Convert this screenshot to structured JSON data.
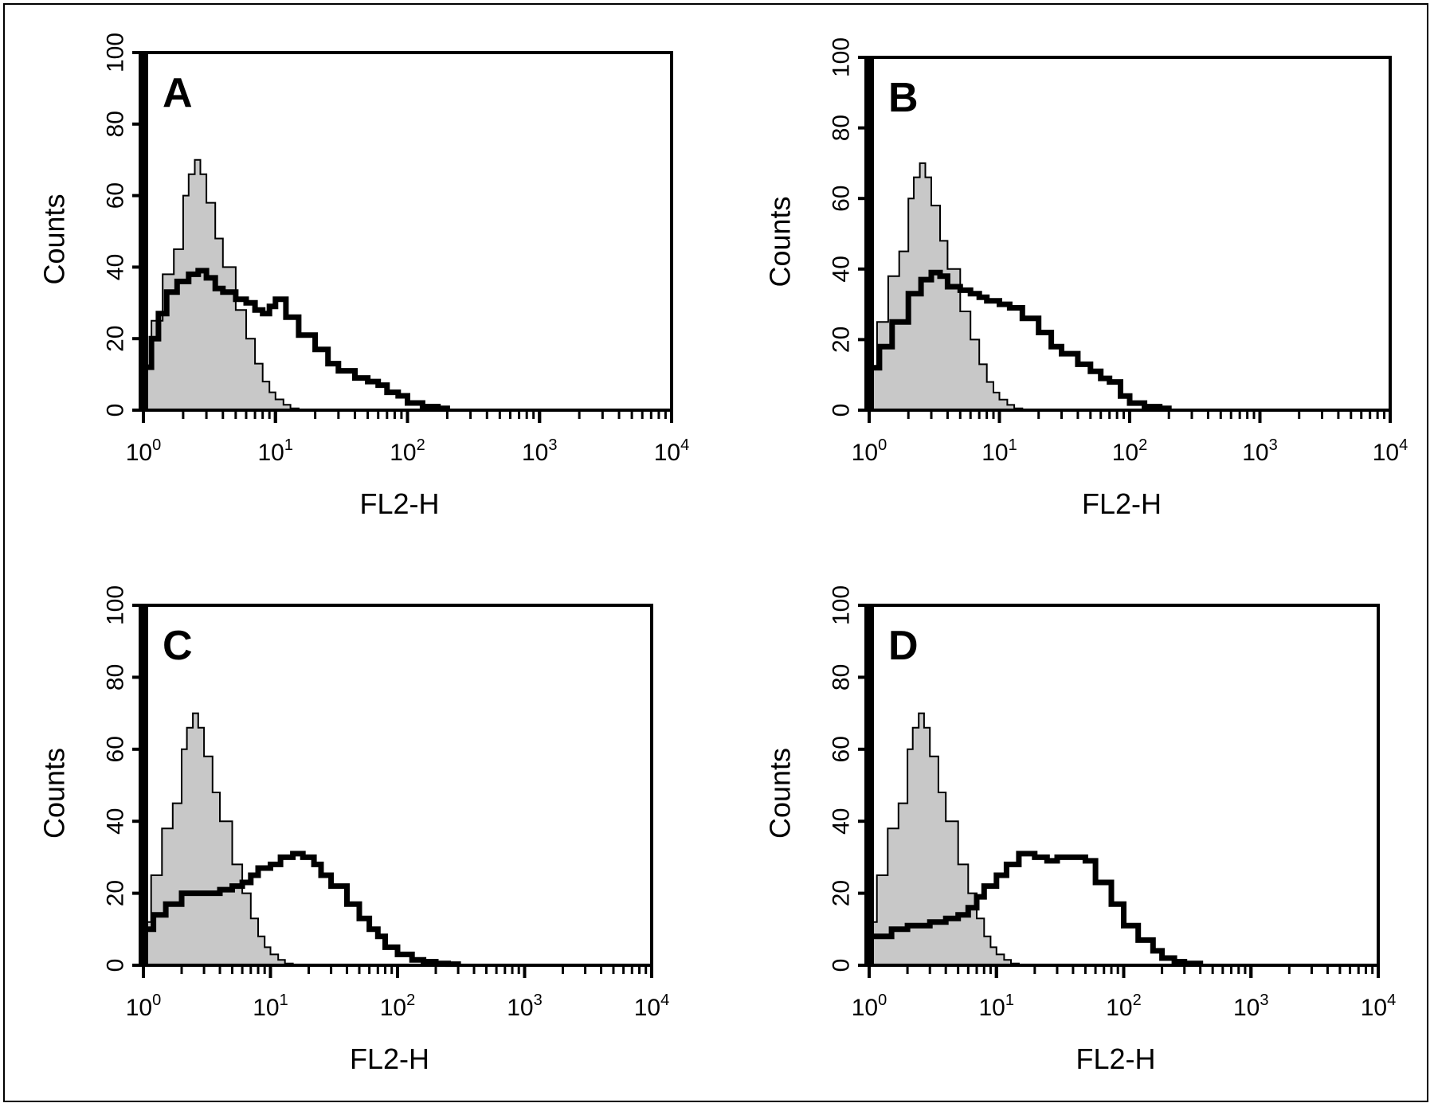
{
  "chart_data": [
    {
      "type": "area",
      "panel_label": "A",
      "xlabel": "FL2-H",
      "ylabel": "Counts",
      "xscale": "log",
      "xlim": [
        1,
        10000
      ],
      "ylim": [
        0,
        100
      ],
      "x_tick_labels": [
        {
          "base": "10",
          "exp": "0"
        },
        {
          "base": "10",
          "exp": "1"
        },
        {
          "base": "10",
          "exp": "2"
        },
        {
          "base": "10",
          "exp": "3"
        },
        {
          "base": "10",
          "exp": "4"
        }
      ],
      "y_tick_labels": [
        "0",
        "20",
        "40",
        "60",
        "80",
        "100"
      ],
      "series": [
        {
          "role": "control-filled",
          "x": [
            1,
            1.15,
            1.4,
            1.7,
            2.0,
            2.2,
            2.45,
            2.7,
            3.0,
            3.5,
            4.0,
            5.0,
            6.0,
            7.0,
            8.0,
            9.0,
            10.0,
            11.5,
            13.0,
            15.0
          ],
          "y": [
            12,
            25,
            38,
            45,
            60,
            66,
            70,
            66,
            58,
            48,
            40,
            28,
            20,
            13,
            8,
            5,
            3,
            1.5,
            0.5,
            0
          ]
        },
        {
          "role": "sample-outline",
          "x": [
            1,
            1.15,
            1.3,
            1.5,
            1.8,
            2.2,
            2.6,
            3.0,
            3.5,
            4.0,
            5.0,
            6.0,
            7.0,
            8.0,
            9.0,
            10.0,
            12.0,
            15.0,
            20.0,
            25.0,
            30.0,
            40.0,
            50.0,
            60.0,
            70.0,
            85.0,
            100.0,
            130.0,
            170.0,
            200.0
          ],
          "y": [
            12,
            20,
            27,
            33,
            36,
            38,
            39,
            37,
            34,
            33,
            31,
            30,
            28,
            27,
            29,
            31,
            26,
            21,
            17,
            13,
            11,
            9,
            8,
            7,
            5,
            4,
            2,
            1,
            0.5,
            0
          ]
        }
      ]
    },
    {
      "type": "area",
      "panel_label": "B",
      "xlabel": "FL2-H",
      "ylabel": "Counts",
      "xscale": "log",
      "xlim": [
        1,
        10000
      ],
      "ylim": [
        0,
        100
      ],
      "x_tick_labels": [
        {
          "base": "10",
          "exp": "0"
        },
        {
          "base": "10",
          "exp": "1"
        },
        {
          "base": "10",
          "exp": "2"
        },
        {
          "base": "10",
          "exp": "3"
        },
        {
          "base": "10",
          "exp": "4"
        }
      ],
      "y_tick_labels": [
        "0",
        "20",
        "40",
        "60",
        "80",
        "100"
      ],
      "series": [
        {
          "role": "control-filled",
          "x": [
            1,
            1.15,
            1.4,
            1.7,
            2.0,
            2.2,
            2.45,
            2.7,
            3.0,
            3.5,
            4.0,
            5.0,
            6.0,
            7.0,
            8.0,
            9.0,
            10.0,
            11.5,
            13.0,
            15.0
          ],
          "y": [
            12,
            25,
            38,
            45,
            60,
            66,
            70,
            66,
            58,
            48,
            40,
            28,
            20,
            13,
            8,
            5,
            3,
            1.5,
            0.5,
            0
          ]
        },
        {
          "role": "sample-outline",
          "x": [
            1,
            1.2,
            1.5,
            2.0,
            2.5,
            3.0,
            3.5,
            4.0,
            5.0,
            6.0,
            7.0,
            8.0,
            10.0,
            12.0,
            15.0,
            20.0,
            25.0,
            30.0,
            40.0,
            50.0,
            60.0,
            70.0,
            85.0,
            100.0,
            130.0,
            170.0,
            200.0
          ],
          "y": [
            12,
            18,
            25,
            33,
            37,
            39,
            38,
            35,
            34,
            33,
            32,
            31,
            30,
            29,
            26,
            22,
            18,
            16,
            13,
            11,
            9,
            8,
            4,
            2,
            1,
            0.5,
            0
          ]
        }
      ]
    },
    {
      "type": "area",
      "panel_label": "C",
      "xlabel": "FL2-H",
      "ylabel": "Counts",
      "xscale": "log",
      "xlim": [
        1,
        10000
      ],
      "ylim": [
        0,
        100
      ],
      "x_tick_labels": [
        {
          "base": "10",
          "exp": "0"
        },
        {
          "base": "10",
          "exp": "1"
        },
        {
          "base": "10",
          "exp": "2"
        },
        {
          "base": "10",
          "exp": "3"
        },
        {
          "base": "10",
          "exp": "4"
        }
      ],
      "y_tick_labels": [
        "0",
        "20",
        "40",
        "60",
        "80",
        "100"
      ],
      "series": [
        {
          "role": "control-filled",
          "x": [
            1,
            1.15,
            1.4,
            1.7,
            2.0,
            2.2,
            2.45,
            2.7,
            3.0,
            3.5,
            4.0,
            5.0,
            6.0,
            7.0,
            8.0,
            9.0,
            10.0,
            11.5,
            13.0,
            15.0
          ],
          "y": [
            12,
            25,
            38,
            45,
            60,
            66,
            70,
            66,
            58,
            48,
            40,
            28,
            20,
            13,
            8,
            5,
            3,
            1.5,
            0.5,
            0
          ]
        },
        {
          "role": "sample-outline",
          "x": [
            1,
            1.2,
            1.5,
            2.0,
            3.0,
            4.0,
            5.0,
            6.0,
            7.0,
            8.0,
            10.0,
            12.0,
            15.0,
            18.0,
            22.0,
            25.0,
            30.0,
            40.0,
            50.0,
            60.0,
            70.0,
            80.0,
            100.0,
            130.0,
            160.0,
            200.0,
            250.0,
            300.0
          ],
          "y": [
            10,
            14,
            17,
            20,
            20,
            21,
            22,
            23,
            25,
            27,
            28,
            30,
            31,
            30,
            28,
            25,
            22,
            17,
            13,
            10,
            8,
            5,
            3,
            1.5,
            1,
            0.5,
            0.3,
            0
          ]
        }
      ]
    },
    {
      "type": "area",
      "panel_label": "D",
      "xlabel": "FL2-H",
      "ylabel": "Counts",
      "xscale": "log",
      "xlim": [
        1,
        10000
      ],
      "ylim": [
        0,
        100
      ],
      "x_tick_labels": [
        {
          "base": "10",
          "exp": "0"
        },
        {
          "base": "10",
          "exp": "1"
        },
        {
          "base": "10",
          "exp": "2"
        },
        {
          "base": "10",
          "exp": "3"
        },
        {
          "base": "10",
          "exp": "4"
        }
      ],
      "y_tick_labels": [
        "0",
        "20",
        "40",
        "60",
        "80",
        "100"
      ],
      "series": [
        {
          "role": "control-filled",
          "x": [
            1,
            1.15,
            1.4,
            1.7,
            2.0,
            2.2,
            2.45,
            2.7,
            3.0,
            3.5,
            4.0,
            5.0,
            6.0,
            7.0,
            8.0,
            9.0,
            10.0,
            11.5,
            13.0,
            15.0
          ],
          "y": [
            12,
            25,
            38,
            45,
            60,
            66,
            70,
            66,
            58,
            48,
            40,
            28,
            20,
            13,
            8,
            5,
            3,
            1.5,
            0.5,
            0
          ]
        },
        {
          "role": "sample-outline",
          "x": [
            1,
            1.5,
            2.0,
            3.0,
            4.0,
            5.0,
            6.0,
            7.0,
            8.0,
            10.0,
            12.0,
            15.0,
            20.0,
            25.0,
            30.0,
            40.0,
            50.0,
            60.0,
            80.0,
            100.0,
            130.0,
            170.0,
            200.0,
            250.0,
            300.0,
            400.0
          ],
          "y": [
            8,
            10,
            11,
            12,
            13,
            14,
            16,
            19,
            22,
            25,
            28,
            31,
            30,
            29,
            30,
            30,
            29,
            23,
            17,
            11,
            7,
            4,
            2,
            1,
            0.5,
            0
          ]
        }
      ]
    }
  ],
  "colors": {
    "fill": "#c8c8c8",
    "stroke": "#000000"
  }
}
